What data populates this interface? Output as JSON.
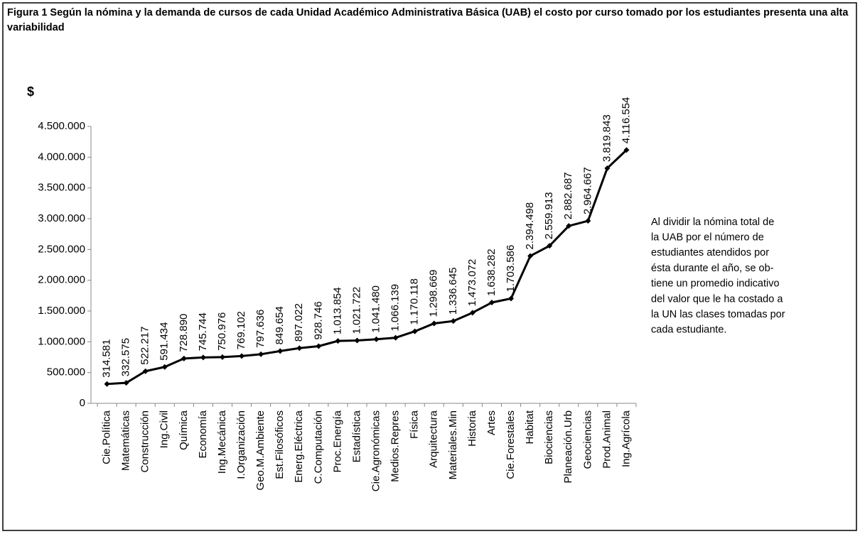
{
  "chart_data": {
    "type": "line",
    "title": "Figura 1 Según la nómina y la demanda de cursos de cada Unidad Académico Administrativa Básica (UAB) el costo por curso tomado por los estudiantes presenta una alta variabilidad",
    "ylabel": "$",
    "annotation": [
      "Al dividir la nómina total de",
      "la UAB por el número de",
      "estudiantes atendidos por",
      "ésta durante el año, se ob-",
      "tiene un promedio indicativo",
      "del valor que le ha costado a",
      "la UN las clases tomadas por",
      "cada estudiante."
    ],
    "categories": [
      "Cie.Política",
      "Matemáticas",
      "Construcción",
      "Ing.Civil",
      "Química",
      "Economía",
      "Ing.Mecánica",
      "I.Organización",
      "Geo.M.Ambiente",
      "Est.Filosóficos",
      "Energ.Eléctrica",
      "C.Computación",
      "Proc.Energía",
      "Estadística",
      "Cie.Agronómicas",
      "Medios.Repres",
      "Física",
      "Arquitectura",
      "Materiales.Min",
      "Historia",
      "Artes",
      "Cie.Forestales",
      "Habitat",
      "Biociencias",
      "Planeación.Urb",
      "Geociencias",
      "Prod.Animal",
      "Ing.Agrícola"
    ],
    "series": [
      {
        "name": "Costo por curso",
        "color": "#000000",
        "values": [
          314581,
          332575,
          522217,
          591434,
          728890,
          745744,
          750976,
          769102,
          797636,
          849654,
          897022,
          928746,
          1013854,
          1021722,
          1041480,
          1066139,
          1170118,
          1298669,
          1336645,
          1473072,
          1638282,
          1703586,
          2394498,
          2559913,
          2882687,
          2964667,
          3819843,
          4116554
        ],
        "value_labels": [
          "314.581",
          "332.575",
          "522.217",
          "591.434",
          "728.890",
          "745.744",
          "750.976",
          "769.102",
          "797.636",
          "849.654",
          "897.022",
          "928.746",
          "1.013.854",
          "1.021.722",
          "1.041.480",
          "1.066.139",
          "1.170.118",
          "1.298.669",
          "1.336.645",
          "1.473.072",
          "1.638.282",
          "1.703.586",
          "2.394.498",
          "2.559.913",
          "2.882.687",
          "2.964.667",
          "3.819.843",
          "4.116.554"
        ]
      }
    ],
    "ylim": [
      0,
      4500000
    ],
    "yticks": [
      0,
      {
        "value": 500000,
        "label": "500.000"
      },
      {
        "value": 1000000,
        "label": "1.000.000"
      },
      {
        "value": 1500000,
        "label": "1.500.000"
      },
      {
        "value": 2000000,
        "label": "2.000.000"
      },
      {
        "value": 2500000,
        "label": "2.500.000"
      },
      {
        "value": 3000000,
        "label": "3.000.000"
      },
      {
        "value": 3500000,
        "label": "3.500.000"
      },
      {
        "value": 4000000,
        "label": "4.000.000"
      },
      {
        "value": 4500000,
        "label": "4.500.000"
      }
    ],
    "grid": false
  }
}
